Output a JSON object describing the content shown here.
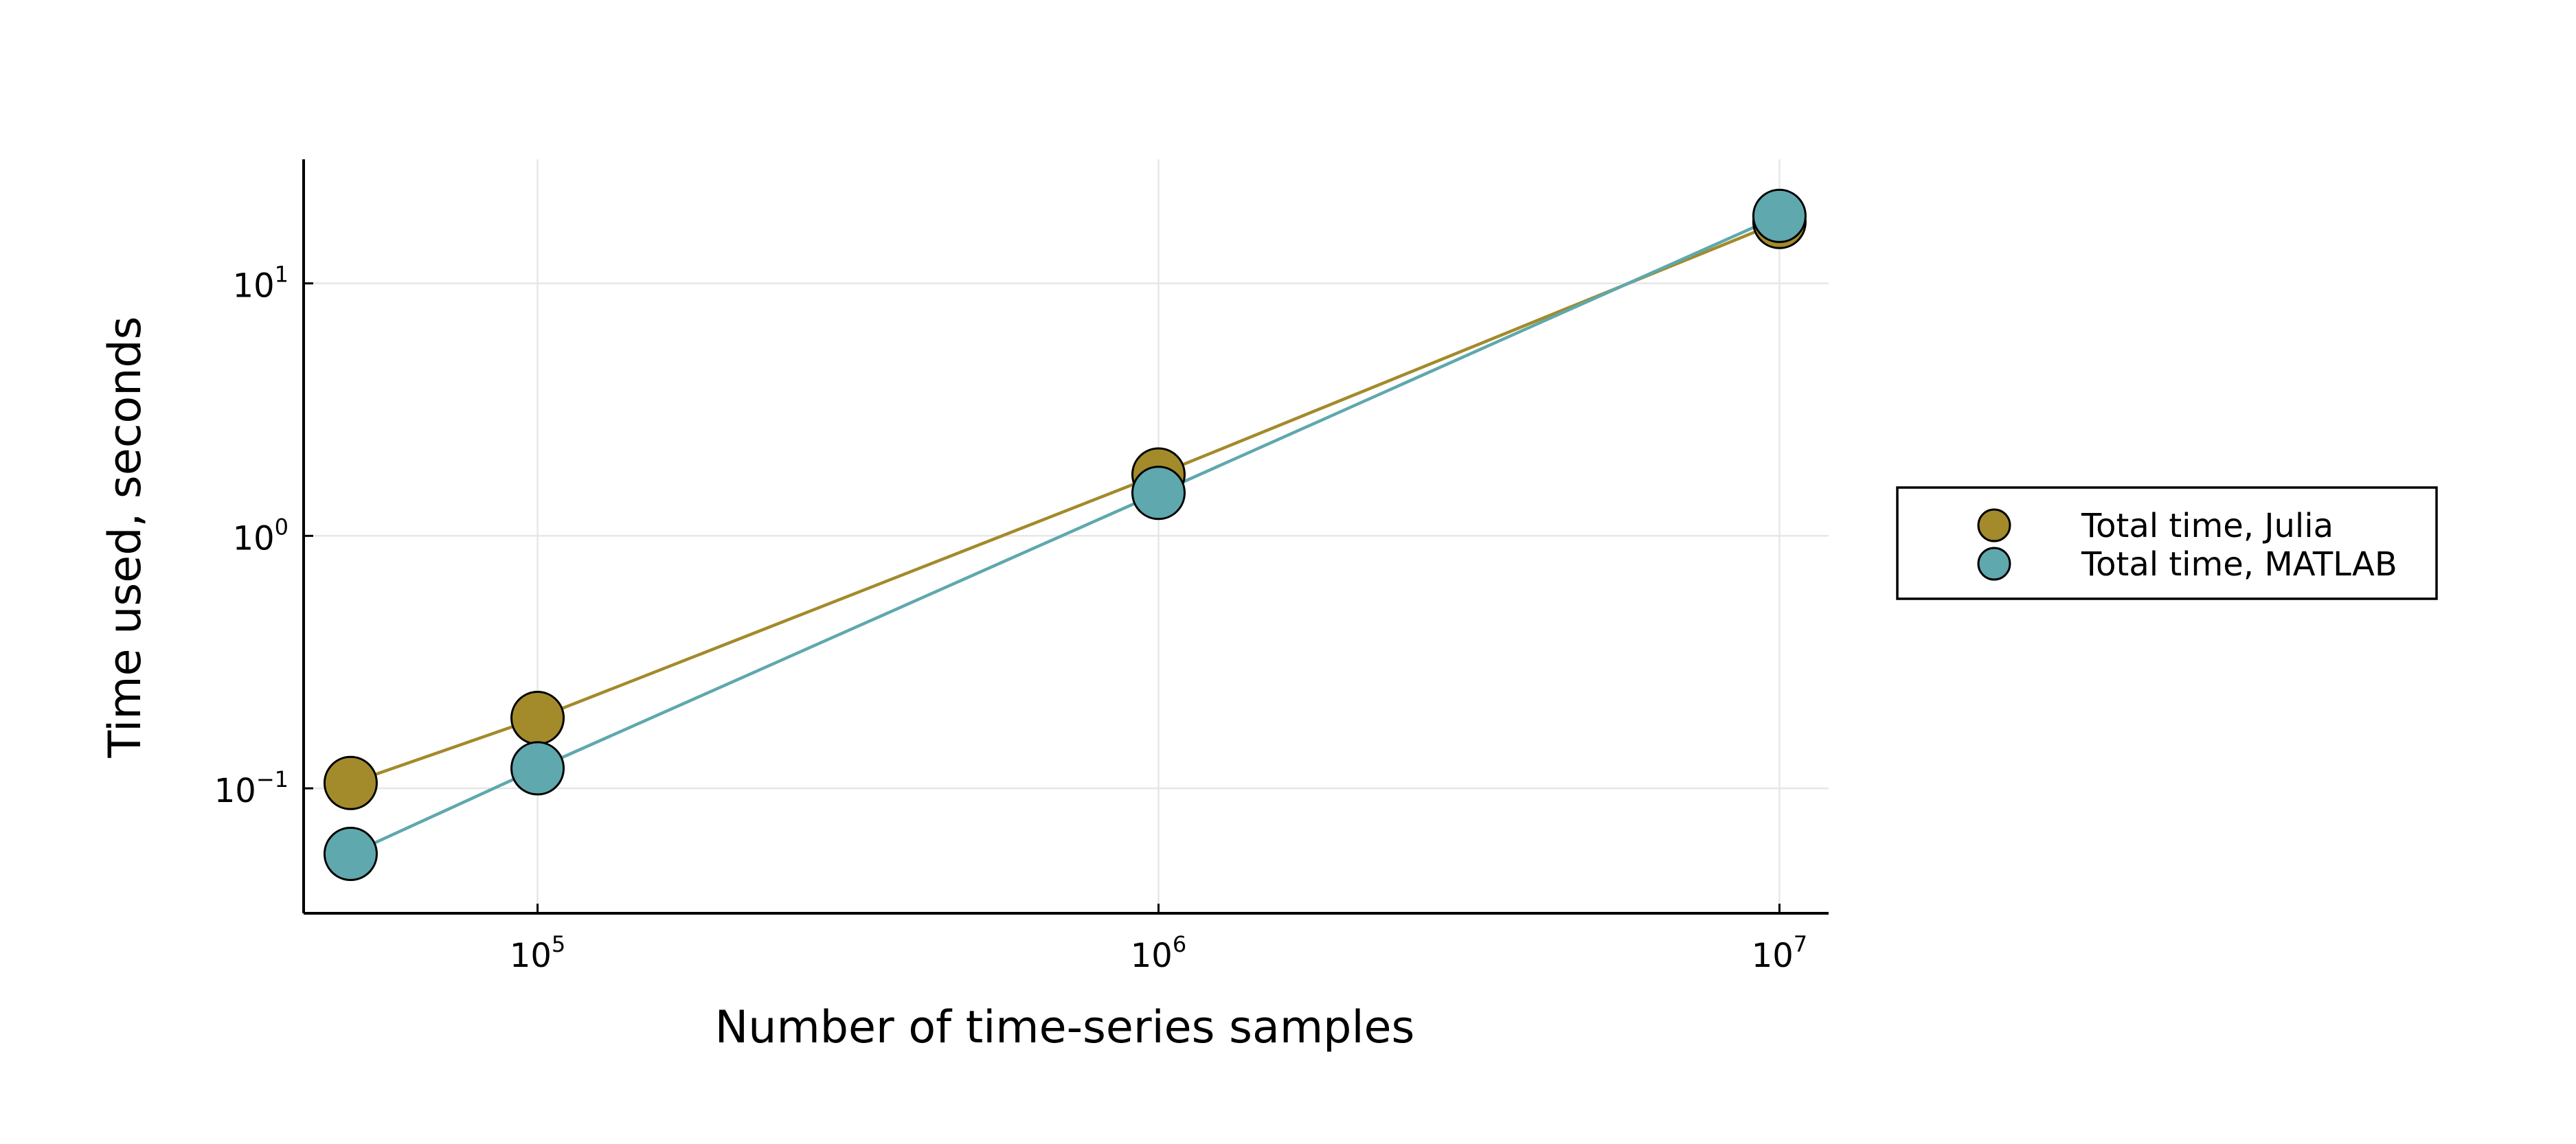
{
  "chart_data": {
    "type": "line",
    "xlabel": "Number of time-series samples",
    "ylabel": "Time used, seconds",
    "x_scale": "log",
    "y_scale": "log",
    "xlim": [
      42000,
      12000000
    ],
    "ylim": [
      0.032,
      31
    ],
    "x_ticks": [
      {
        "value": 100000,
        "base": "10",
        "exp": "5"
      },
      {
        "value": 1000000,
        "base": "10",
        "exp": "6"
      },
      {
        "value": 10000000,
        "base": "10",
        "exp": "7"
      }
    ],
    "y_ticks": [
      {
        "value": 0.1,
        "base": "10",
        "exp": "−1"
      },
      {
        "value": 1,
        "base": "10",
        "exp": "0"
      },
      {
        "value": 10,
        "base": "10",
        "exp": "1"
      }
    ],
    "grid": true,
    "legend_position": "outside right",
    "series": [
      {
        "name": "Total time, Julia",
        "color": "#a38a2b",
        "x": [
          50000,
          100000,
          1000000,
          10000000
        ],
        "y": [
          0.105,
          0.19,
          1.75,
          17.5
        ]
      },
      {
        "name": "Total time, MATLAB",
        "color": "#5fa8ad",
        "x": [
          50000,
          100000,
          1000000,
          10000000
        ],
        "y": [
          0.055,
          0.12,
          1.48,
          18.5
        ]
      }
    ]
  }
}
